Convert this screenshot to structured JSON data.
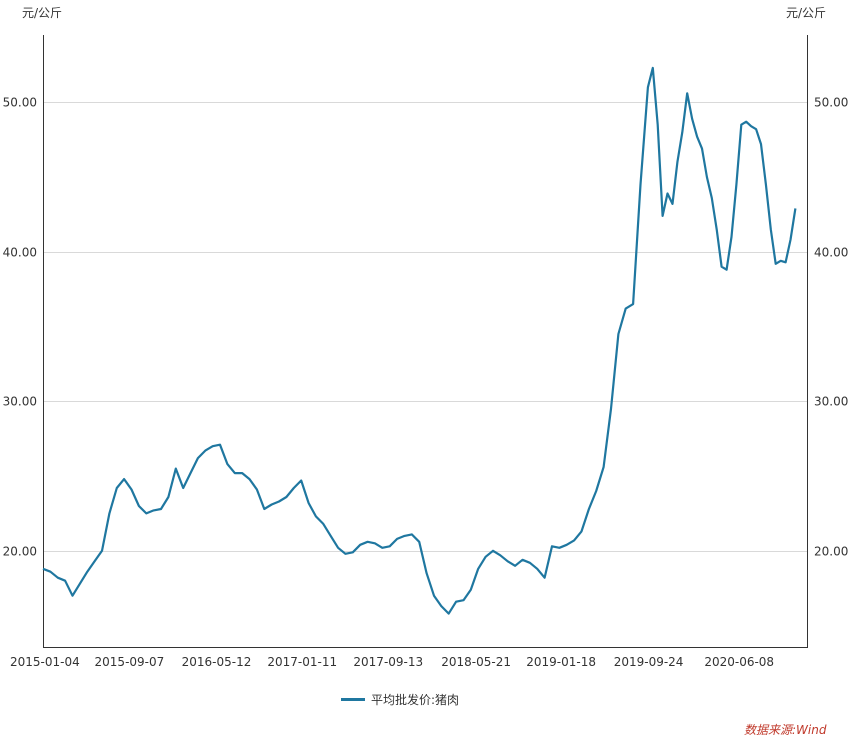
{
  "chart_data": {
    "type": "line",
    "y_unit_left": "元/公斤",
    "y_unit_right": "元/公斤",
    "xticks": [
      "2015-01-04",
      "2015-09-07",
      "2016-05-12",
      "2017-01-11",
      "2017-09-13",
      "2018-05-21",
      "2019-01-18",
      "2019-09-24",
      "2020-06-08"
    ],
    "yticks": [
      "20.00",
      "30.00",
      "40.00",
      "50.00"
    ],
    "ylim": [
      13.5,
      54.5
    ],
    "xlim": [
      "2015-01-04",
      "2020-12-18"
    ],
    "grid": true,
    "legend_position": "bottom",
    "series": [
      {
        "name": "平均批发价:猪肉",
        "color": "#1f77a0",
        "points": [
          [
            "2015-01-04",
            18.8
          ],
          [
            "2015-01-25",
            18.6
          ],
          [
            "2015-02-15",
            18.2
          ],
          [
            "2015-03-08",
            18.0
          ],
          [
            "2015-03-29",
            17.0
          ],
          [
            "2015-04-19",
            17.8
          ],
          [
            "2015-05-10",
            18.6
          ],
          [
            "2015-05-31",
            19.3
          ],
          [
            "2015-06-21",
            20.0
          ],
          [
            "2015-07-12",
            22.5
          ],
          [
            "2015-08-02",
            24.2
          ],
          [
            "2015-08-23",
            24.8
          ],
          [
            "2015-09-13",
            24.1
          ],
          [
            "2015-10-04",
            23.0
          ],
          [
            "2015-10-25",
            22.5
          ],
          [
            "2015-11-15",
            22.7
          ],
          [
            "2015-12-06",
            22.8
          ],
          [
            "2015-12-27",
            23.6
          ],
          [
            "2016-01-17",
            25.5
          ],
          [
            "2016-02-07",
            24.2
          ],
          [
            "2016-02-28",
            25.2
          ],
          [
            "2016-03-20",
            26.2
          ],
          [
            "2016-04-10",
            26.7
          ],
          [
            "2016-05-01",
            27.0
          ],
          [
            "2016-05-22",
            27.1
          ],
          [
            "2016-06-12",
            25.8
          ],
          [
            "2016-07-03",
            25.2
          ],
          [
            "2016-07-24",
            25.2
          ],
          [
            "2016-08-14",
            24.8
          ],
          [
            "2016-09-04",
            24.1
          ],
          [
            "2016-09-25",
            22.8
          ],
          [
            "2016-10-16",
            23.1
          ],
          [
            "2016-11-06",
            23.3
          ],
          [
            "2016-11-27",
            23.6
          ],
          [
            "2016-12-18",
            24.2
          ],
          [
            "2017-01-08",
            24.7
          ],
          [
            "2017-01-29",
            23.2
          ],
          [
            "2017-02-19",
            22.3
          ],
          [
            "2017-03-12",
            21.8
          ],
          [
            "2017-04-02",
            21.0
          ],
          [
            "2017-04-23",
            20.2
          ],
          [
            "2017-05-14",
            19.8
          ],
          [
            "2017-06-04",
            19.9
          ],
          [
            "2017-06-25",
            20.4
          ],
          [
            "2017-07-16",
            20.6
          ],
          [
            "2017-08-06",
            20.5
          ],
          [
            "2017-08-27",
            20.2
          ],
          [
            "2017-09-17",
            20.3
          ],
          [
            "2017-10-08",
            20.8
          ],
          [
            "2017-10-29",
            21.0
          ],
          [
            "2017-11-19",
            21.1
          ],
          [
            "2017-12-10",
            20.6
          ],
          [
            "2017-12-31",
            18.5
          ],
          [
            "2018-01-21",
            17.0
          ],
          [
            "2018-02-11",
            16.3
          ],
          [
            "2018-03-04",
            15.8
          ],
          [
            "2018-03-25",
            16.6
          ],
          [
            "2018-04-15",
            16.7
          ],
          [
            "2018-05-06",
            17.4
          ],
          [
            "2018-05-27",
            18.8
          ],
          [
            "2018-06-17",
            19.6
          ],
          [
            "2018-07-08",
            20.0
          ],
          [
            "2018-07-29",
            19.7
          ],
          [
            "2018-08-19",
            19.3
          ],
          [
            "2018-09-09",
            19.0
          ],
          [
            "2018-09-30",
            19.4
          ],
          [
            "2018-10-21",
            19.2
          ],
          [
            "2018-11-11",
            18.8
          ],
          [
            "2018-12-02",
            18.2
          ],
          [
            "2018-12-23",
            20.3
          ],
          [
            "2019-01-13",
            20.2
          ],
          [
            "2019-02-03",
            20.4
          ],
          [
            "2019-02-24",
            20.7
          ],
          [
            "2019-03-17",
            21.3
          ],
          [
            "2019-04-07",
            22.8
          ],
          [
            "2019-04-28",
            24.0
          ],
          [
            "2019-05-19",
            25.6
          ],
          [
            "2019-06-09",
            29.5
          ],
          [
            "2019-06-30",
            34.5
          ],
          [
            "2019-07-21",
            36.2
          ],
          [
            "2019-08-11",
            36.5
          ],
          [
            "2019-09-01",
            44.5
          ],
          [
            "2019-09-22",
            51.0
          ],
          [
            "2019-10-06",
            52.3
          ],
          [
            "2019-10-20",
            48.5
          ],
          [
            "2019-11-03",
            42.4
          ],
          [
            "2019-11-17",
            43.9
          ],
          [
            "2019-12-01",
            43.2
          ],
          [
            "2019-12-15",
            46.0
          ],
          [
            "2019-12-29",
            48.0
          ],
          [
            "2020-01-12",
            50.6
          ],
          [
            "2020-01-26",
            48.9
          ],
          [
            "2020-02-09",
            47.7
          ],
          [
            "2020-02-23",
            46.9
          ],
          [
            "2020-03-08",
            45.0
          ],
          [
            "2020-03-22",
            43.6
          ],
          [
            "2020-04-05",
            41.5
          ],
          [
            "2020-04-19",
            39.0
          ],
          [
            "2020-05-03",
            38.8
          ],
          [
            "2020-05-17",
            41.0
          ],
          [
            "2020-05-31",
            44.5
          ],
          [
            "2020-06-14",
            48.5
          ],
          [
            "2020-06-28",
            48.7
          ],
          [
            "2020-07-12",
            48.4
          ],
          [
            "2020-07-26",
            48.2
          ],
          [
            "2020-08-09",
            47.2
          ],
          [
            "2020-08-23",
            44.5
          ],
          [
            "2020-09-06",
            41.5
          ],
          [
            "2020-09-20",
            39.2
          ],
          [
            "2020-10-04",
            39.4
          ],
          [
            "2020-10-18",
            39.3
          ],
          [
            "2020-11-01",
            40.8
          ],
          [
            "2020-11-15",
            42.9
          ]
        ]
      }
    ]
  },
  "legend": {
    "label": "平均批发价:猪肉"
  },
  "source": {
    "text": "数据来源:Wind"
  }
}
